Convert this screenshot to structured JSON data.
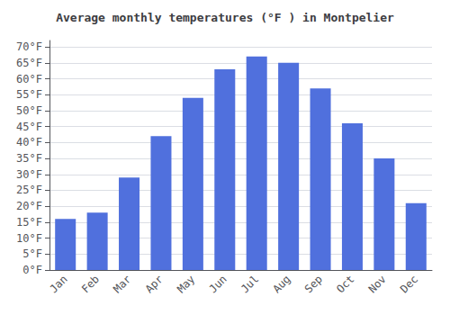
{
  "chart_data": {
    "type": "bar",
    "title": "Average monthly temperatures (°F ) in Montpelier",
    "categories": [
      "Jan",
      "Feb",
      "Mar",
      "Apr",
      "May",
      "Jun",
      "Jul",
      "Aug",
      "Sep",
      "Oct",
      "Nov",
      "Dec"
    ],
    "values": [
      16,
      18,
      29,
      42,
      54,
      63,
      67,
      65,
      57,
      46,
      35,
      21
    ],
    "ylim": [
      0,
      72
    ],
    "yticks": [
      {
        "value": 0,
        "label": "0°F"
      },
      {
        "value": 5,
        "label": "5°F"
      },
      {
        "value": 10,
        "label": "10°F"
      },
      {
        "value": 15,
        "label": "15°F"
      },
      {
        "value": 20,
        "label": "20°F"
      },
      {
        "value": 25,
        "label": "25°F"
      },
      {
        "value": 30,
        "label": "30°F"
      },
      {
        "value": 35,
        "label": "35°F"
      },
      {
        "value": 40,
        "label": "40°F"
      },
      {
        "value": 45,
        "label": "45°F"
      },
      {
        "value": 50,
        "label": "50°F"
      },
      {
        "value": 55,
        "label": "55°F"
      },
      {
        "value": 60,
        "label": "60°F"
      },
      {
        "value": 65,
        "label": "65°F"
      },
      {
        "value": 70,
        "label": "70°F"
      }
    ],
    "grid": true
  }
}
